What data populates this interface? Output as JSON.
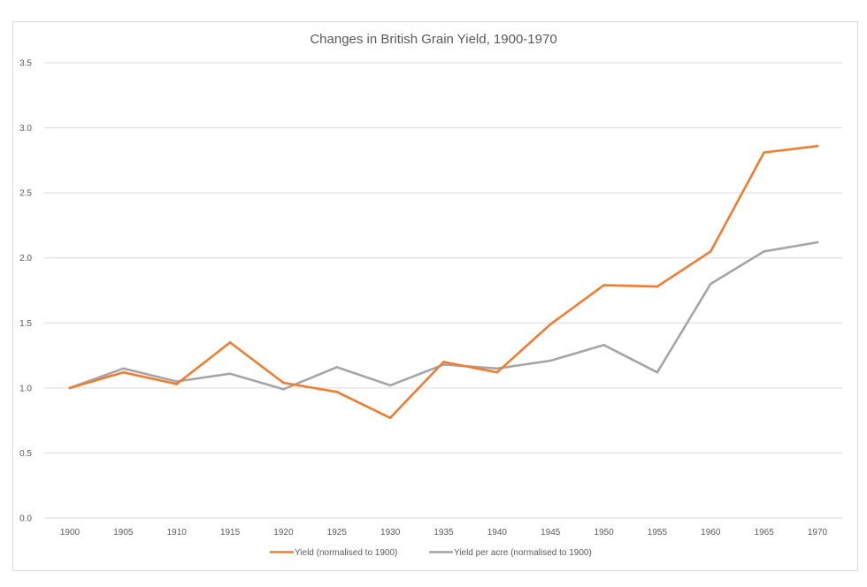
{
  "chart_data": {
    "type": "line",
    "title": "Changes in British Grain Yield, 1900-1970",
    "xlabel": "",
    "ylabel": "",
    "x": [
      "1900",
      "1905",
      "1910",
      "1915",
      "1920",
      "1925",
      "1930",
      "1935",
      "1940",
      "1945",
      "1950",
      "1955",
      "1960",
      "1965",
      "1970"
    ],
    "ylim": [
      0.0,
      3.5
    ],
    "yticks": [
      "0.0",
      "0.5",
      "1.0",
      "1.5",
      "2.0",
      "2.5",
      "3.0",
      "3.5"
    ],
    "grid": true,
    "legend_position": "bottom",
    "series": [
      {
        "name": "Yield (normalised to 1900)",
        "color": "#ed7d31",
        "values": [
          1.0,
          1.12,
          1.03,
          1.35,
          1.04,
          0.97,
          0.77,
          1.2,
          1.12,
          1.49,
          1.79,
          1.78,
          2.05,
          2.81,
          2.86
        ]
      },
      {
        "name": "Yield per acre (normalised to 1900)",
        "color": "#a5a5a5",
        "values": [
          1.0,
          1.15,
          1.05,
          1.11,
          0.99,
          1.16,
          1.02,
          1.18,
          1.15,
          1.21,
          1.33,
          1.12,
          1.8,
          2.05,
          2.12
        ]
      }
    ]
  }
}
